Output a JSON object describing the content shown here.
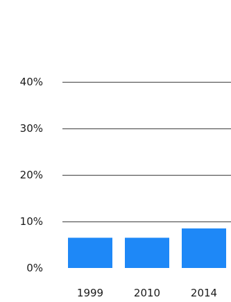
{
  "chart_data": {
    "type": "bar",
    "title": "",
    "xlabel": "",
    "ylabel": "",
    "categories": [
      "1999",
      "2010",
      "2014"
    ],
    "values": [
      6.5,
      6.5,
      8.5
    ],
    "ylim": [
      0,
      40
    ],
    "yticks": [
      "0%",
      "10%",
      "20%",
      "30%",
      "40%"
    ],
    "grid": true,
    "bar_color": "#1e88f7",
    "grid_color": "#5a5a5a"
  }
}
